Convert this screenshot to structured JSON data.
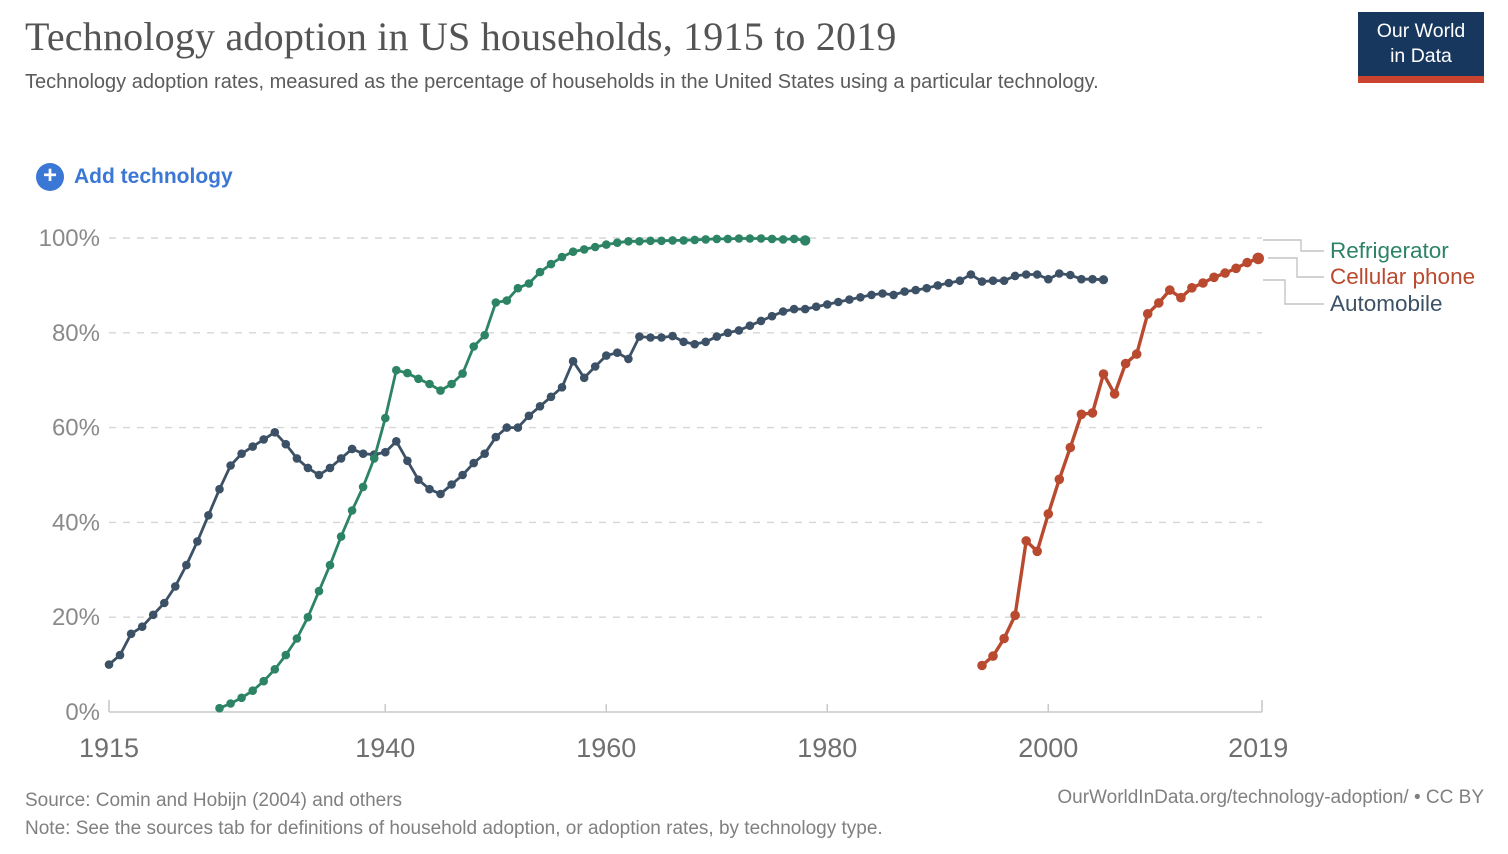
{
  "header": {
    "title": "Technology adoption in US households, 1915 to 2019",
    "subtitle": "Technology adoption rates, measured as the percentage of households in the United States using a particular technology.",
    "logo": {
      "line1": "Our World",
      "line2": "in Data",
      "bg_color": "#18375f",
      "accent_color": "#c9432f"
    }
  },
  "controls": {
    "add_button_label": "Add technology",
    "plus_icon": "+",
    "accent_color": "#3b77d4"
  },
  "footer": {
    "source": "Source: Comin and Hobijn (2004) and others",
    "note": "Note: See the sources tab for definitions of household adoption, or adoption rates, by technology type.",
    "credit": "OurWorldInData.org/technology-adoption/ • CC BY"
  },
  "chart_data": {
    "type": "line",
    "title": "Technology adoption in US households, 1915 to 2019",
    "xlabel": "",
    "ylabel": "",
    "x_range": [
      1915,
      2019
    ],
    "y_range": [
      0,
      100
    ],
    "x_ticks": [
      1915,
      1940,
      1960,
      1980,
      2000,
      2019
    ],
    "y_ticks": [
      0,
      20,
      40,
      60,
      80,
      100
    ],
    "y_tick_suffix": "%",
    "grid": "dashed-horizontal",
    "legend_position": "right",
    "grid_color": "#d6d6d6",
    "axis_color": "#c9c9c9",
    "tick_label_color_x": "#6f6f6f",
    "tick_label_color_y": "#8a8a8a",
    "series": [
      {
        "name": "Refrigerator",
        "color": "#2c8465",
        "points": [
          [
            1925,
            0.8
          ],
          [
            1926,
            1.8
          ],
          [
            1927,
            3
          ],
          [
            1928,
            4.5
          ],
          [
            1929,
            6.5
          ],
          [
            1930,
            9
          ],
          [
            1931,
            12
          ],
          [
            1932,
            15.5
          ],
          [
            1933,
            20
          ],
          [
            1934,
            25.5
          ],
          [
            1935,
            31
          ],
          [
            1936,
            37
          ],
          [
            1937,
            42.5
          ],
          [
            1938,
            47.5
          ],
          [
            1939,
            53.5
          ],
          [
            1940,
            62
          ],
          [
            1941,
            72.1
          ],
          [
            1942,
            71.5
          ],
          [
            1943,
            70.3
          ],
          [
            1944,
            69.2
          ],
          [
            1945,
            67.8
          ],
          [
            1946,
            69.2
          ],
          [
            1947,
            71.4
          ],
          [
            1948,
            77.1
          ],
          [
            1949,
            79.5
          ],
          [
            1950,
            86.4
          ],
          [
            1951,
            86.8
          ],
          [
            1952,
            89.4
          ],
          [
            1953,
            90.4
          ],
          [
            1954,
            92.8
          ],
          [
            1955,
            94.5
          ],
          [
            1956,
            96
          ],
          [
            1957,
            97.1
          ],
          [
            1958,
            97.6
          ],
          [
            1959,
            98.1
          ],
          [
            1960,
            98.6
          ],
          [
            1961,
            99
          ],
          [
            1962,
            99.3
          ],
          [
            1963,
            99.3
          ],
          [
            1964,
            99.4
          ],
          [
            1965,
            99.4
          ],
          [
            1966,
            99.5
          ],
          [
            1967,
            99.5
          ],
          [
            1968,
            99.6
          ],
          [
            1969,
            99.7
          ],
          [
            1970,
            99.8
          ],
          [
            1971,
            99.8
          ],
          [
            1972,
            99.9
          ],
          [
            1973,
            99.9
          ],
          [
            1974,
            99.9
          ],
          [
            1975,
            99.8
          ],
          [
            1976,
            99.7
          ],
          [
            1977,
            99.8
          ],
          [
            1978,
            99.5
          ]
        ]
      },
      {
        "name": "Cellular phone",
        "color": "#b94a2f",
        "points": [
          [
            1994,
            9.8
          ],
          [
            1995,
            11.8
          ],
          [
            1996,
            15.5
          ],
          [
            1997,
            20.4
          ],
          [
            1998,
            36.1
          ],
          [
            1999,
            33.9
          ],
          [
            2000,
            41.8
          ],
          [
            2001,
            49.1
          ],
          [
            2002,
            55.8
          ],
          [
            2003,
            62.8
          ],
          [
            2004,
            63.1
          ],
          [
            2005,
            71.3
          ],
          [
            2006,
            67.1
          ],
          [
            2007,
            73.5
          ],
          [
            2008,
            75.5
          ],
          [
            2009,
            84
          ],
          [
            2010,
            86.3
          ],
          [
            2011,
            89
          ],
          [
            2012,
            87.4
          ],
          [
            2013,
            89.5
          ],
          [
            2014,
            90.5
          ],
          [
            2015,
            91.7
          ],
          [
            2016,
            92.6
          ],
          [
            2017,
            93.6
          ],
          [
            2018,
            94.8
          ],
          [
            2019,
            95.7
          ]
        ]
      },
      {
        "name": "Automobile",
        "color": "#3d5166",
        "points": [
          [
            1915,
            10
          ],
          [
            1916,
            12
          ],
          [
            1917,
            16.5
          ],
          [
            1918,
            18
          ],
          [
            1919,
            20.5
          ],
          [
            1920,
            23
          ],
          [
            1921,
            26.5
          ],
          [
            1922,
            31
          ],
          [
            1923,
            36
          ],
          [
            1924,
            41.5
          ],
          [
            1925,
            47
          ],
          [
            1926,
            52
          ],
          [
            1927,
            54.5
          ],
          [
            1928,
            56
          ],
          [
            1929,
            57.5
          ],
          [
            1930,
            59
          ],
          [
            1931,
            56.5
          ],
          [
            1932,
            53.5
          ],
          [
            1933,
            51.5
          ],
          [
            1934,
            50
          ],
          [
            1935,
            51.5
          ],
          [
            1936,
            53.5
          ],
          [
            1937,
            55.5
          ],
          [
            1938,
            54.5
          ],
          [
            1939,
            54.3
          ],
          [
            1940,
            54.8
          ],
          [
            1941,
            57.1
          ],
          [
            1942,
            53
          ],
          [
            1943,
            49
          ],
          [
            1944,
            47
          ],
          [
            1945,
            46
          ],
          [
            1946,
            48
          ],
          [
            1947,
            50
          ],
          [
            1948,
            52.5
          ],
          [
            1949,
            54.5
          ],
          [
            1950,
            58
          ],
          [
            1951,
            60
          ],
          [
            1952,
            60
          ],
          [
            1953,
            62.5
          ],
          [
            1954,
            64.5
          ],
          [
            1955,
            66.5
          ],
          [
            1956,
            68.5
          ],
          [
            1957,
            74
          ],
          [
            1958,
            70.5
          ],
          [
            1959,
            72.9
          ],
          [
            1960,
            75.2
          ],
          [
            1961,
            75.8
          ],
          [
            1962,
            74.5
          ],
          [
            1963,
            79.2
          ],
          [
            1964,
            79
          ],
          [
            1965,
            79
          ],
          [
            1966,
            79.3
          ],
          [
            1967,
            78.1
          ],
          [
            1968,
            77.6
          ],
          [
            1969,
            78.1
          ],
          [
            1970,
            79.2
          ],
          [
            1971,
            80
          ],
          [
            1972,
            80.5
          ],
          [
            1973,
            81.5
          ],
          [
            1974,
            82.5
          ],
          [
            1975,
            83.5
          ],
          [
            1976,
            84.5
          ],
          [
            1977,
            85
          ],
          [
            1978,
            85
          ],
          [
            1979,
            85.5
          ],
          [
            1980,
            86
          ],
          [
            1981,
            86.5
          ],
          [
            1982,
            87
          ],
          [
            1983,
            87.5
          ],
          [
            1984,
            88
          ],
          [
            1985,
            88.3
          ],
          [
            1986,
            88
          ],
          [
            1987,
            88.7
          ],
          [
            1988,
            89
          ],
          [
            1989,
            89.4
          ],
          [
            1990,
            90
          ],
          [
            1991,
            90.5
          ],
          [
            1992,
            91
          ],
          [
            1993,
            92.3
          ],
          [
            1994,
            90.8
          ],
          [
            1995,
            91
          ],
          [
            1996,
            91
          ],
          [
            1997,
            92
          ],
          [
            1998,
            92.3
          ],
          [
            1999,
            92.3
          ],
          [
            2000,
            91.3
          ],
          [
            2001,
            92.5
          ],
          [
            2002,
            92.2
          ],
          [
            2003,
            91.3
          ],
          [
            2004,
            91.3
          ],
          [
            2005,
            91.2
          ]
        ]
      }
    ]
  }
}
